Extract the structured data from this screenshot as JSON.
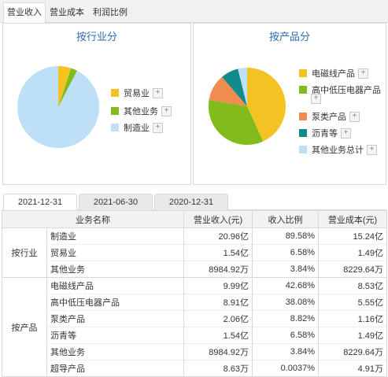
{
  "tabs": [
    "营业收入",
    "营业成本",
    "利润比例"
  ],
  "active_tab": 0,
  "industry_chart": {
    "title": "按行业分",
    "legend": [
      {
        "label": "贸易业",
        "color": "#f5c223"
      },
      {
        "label": "其他业务",
        "color": "#82bb1b"
      },
      {
        "label": "制造业",
        "color": "#bde0f7"
      }
    ]
  },
  "product_chart": {
    "title": "按产品分",
    "legend": [
      {
        "label": "电磁线产品",
        "color": "#f5c223"
      },
      {
        "label": "高中低压电器产品",
        "color": "#82bb1b"
      },
      {
        "label": "泵类产品",
        "color": "#f08c4d"
      },
      {
        "label": "沥青等",
        "color": "#138a8a"
      },
      {
        "label": "其他业务总计",
        "color": "#bde0f7"
      }
    ]
  },
  "date_tabs": [
    "2021-12-31",
    "2021-06-30",
    "2020-12-31"
  ],
  "active_date": 0,
  "table": {
    "headers": [
      "业务名称",
      "营业收入(元)",
      "收入比例",
      "营业成本(元)"
    ],
    "groups": [
      {
        "name": "按行业",
        "rows": [
          {
            "name": "制造业",
            "revenue": "20.96亿",
            "ratio": "89.58%",
            "cost": "15.24亿"
          },
          {
            "name": "贸易业",
            "revenue": "1.54亿",
            "ratio": "6.58%",
            "cost": "1.49亿"
          },
          {
            "name": "其他业务",
            "revenue": "8984.92万",
            "ratio": "3.84%",
            "cost": "8229.64万"
          }
        ]
      },
      {
        "name": "按产品",
        "rows": [
          {
            "name": "电磁线产品",
            "revenue": "9.99亿",
            "ratio": "42.68%",
            "cost": "8.53亿"
          },
          {
            "name": "高中低压电器产品",
            "revenue": "8.91亿",
            "ratio": "38.08%",
            "cost": "5.55亿"
          },
          {
            "name": "泵类产品",
            "revenue": "2.06亿",
            "ratio": "8.82%",
            "cost": "1.16亿"
          },
          {
            "name": "沥青等",
            "revenue": "1.54亿",
            "ratio": "6.58%",
            "cost": "1.49亿"
          },
          {
            "name": "其他业务",
            "revenue": "8984.92万",
            "ratio": "3.84%",
            "cost": "8229.64万"
          },
          {
            "name": "超导产品",
            "revenue": "8.63万",
            "ratio": "0.0037%",
            "cost": "4.91万"
          }
        ]
      }
    ]
  }
}
